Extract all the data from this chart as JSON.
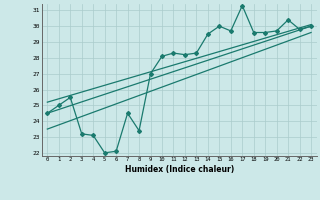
{
  "title": "",
  "xlabel": "Humidex (Indice chaleur)",
  "ylabel": "",
  "bg_color": "#cce8e8",
  "line_color": "#1a7a6e",
  "grid_color": "#aacccc",
  "xlim": [
    -0.5,
    23.5
  ],
  "ylim": [
    21.8,
    31.4
  ],
  "yticks": [
    22,
    23,
    24,
    25,
    26,
    27,
    28,
    29,
    30,
    31
  ],
  "xticks": [
    0,
    1,
    2,
    3,
    4,
    5,
    6,
    7,
    8,
    9,
    10,
    11,
    12,
    13,
    14,
    15,
    16,
    17,
    18,
    19,
    20,
    21,
    22,
    23
  ],
  "data_x": [
    0,
    1,
    2,
    3,
    4,
    5,
    6,
    7,
    8,
    9,
    10,
    11,
    12,
    13,
    14,
    15,
    16,
    17,
    18,
    19,
    20,
    21,
    22,
    23
  ],
  "data_y": [
    24.5,
    25.0,
    25.5,
    23.2,
    23.1,
    22.0,
    22.1,
    24.5,
    23.4,
    27.0,
    28.1,
    28.3,
    28.2,
    28.3,
    29.5,
    30.0,
    29.7,
    31.3,
    29.6,
    29.6,
    29.7,
    30.4,
    29.8,
    30.0
  ],
  "trend1_x": [
    0,
    23
  ],
  "trend1_y": [
    24.5,
    30.0
  ],
  "trend2_x": [
    0,
    23
  ],
  "trend2_y": [
    25.2,
    30.1
  ],
  "trend3_x": [
    0,
    23
  ],
  "trend3_y": [
    23.5,
    29.6
  ]
}
